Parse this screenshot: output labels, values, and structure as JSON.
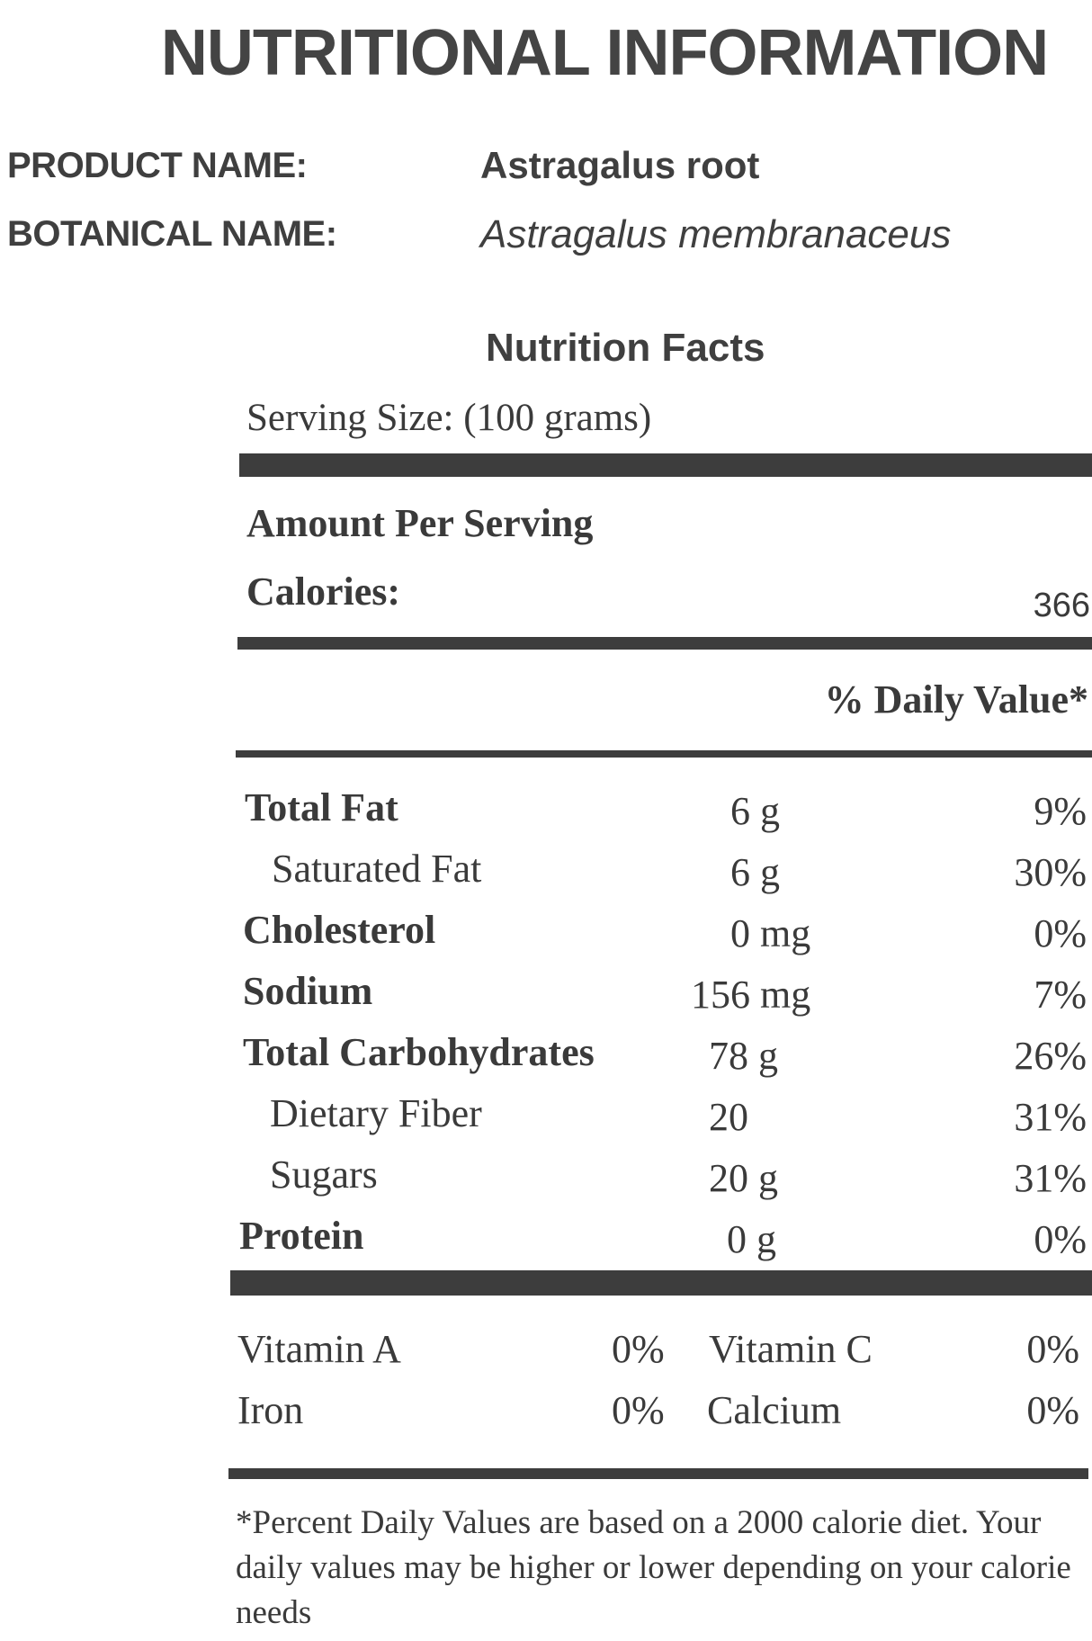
{
  "header": {
    "title": "NUTRITIONAL INFORMATION"
  },
  "product": {
    "product_label": "PRODUCT NAME:",
    "product_value": "Astragalus root",
    "botanical_label": "BOTANICAL NAME:",
    "botanical_value": "Astragalus membranaceus"
  },
  "facts": {
    "title": "Nutrition Facts",
    "serving_size": "Serving Size: (100 grams)",
    "amount_per_serving": "Amount Per Serving",
    "calories_label": "Calories:",
    "calories_value": "366",
    "daily_value_header": "% Daily Value*",
    "rows": [
      {
        "name": "Total Fat",
        "amount": "6 g",
        "dv": "9%"
      },
      {
        "name": "Saturated Fat",
        "amount": "6 g",
        "dv": "30%"
      },
      {
        "name": "Cholesterol",
        "amount": "0 mg",
        "dv": "0%"
      },
      {
        "name": "Sodium",
        "amount": "156 mg",
        "dv": "7%"
      },
      {
        "name": "Total Carbohydrates",
        "amount": "78 g",
        "dv": "26%"
      },
      {
        "name": "Dietary Fiber",
        "amount": "20",
        "dv": "31%"
      },
      {
        "name": "Sugars",
        "amount": "20 g",
        "dv": "31%"
      },
      {
        "name": "Protein",
        "amount": "0 g",
        "dv": "0%"
      }
    ],
    "vitamins": [
      {
        "name": "Vitamin A",
        "dv": "0%"
      },
      {
        "name": "Vitamin C",
        "dv": "0%"
      },
      {
        "name": "Iron",
        "dv": "0%"
      },
      {
        "name": "Calcium",
        "dv": "0%"
      }
    ],
    "footnote": "*Percent Daily Values are based on a 2000 calorie diet. Your daily values may be higher or lower depending on your calorie needs"
  }
}
